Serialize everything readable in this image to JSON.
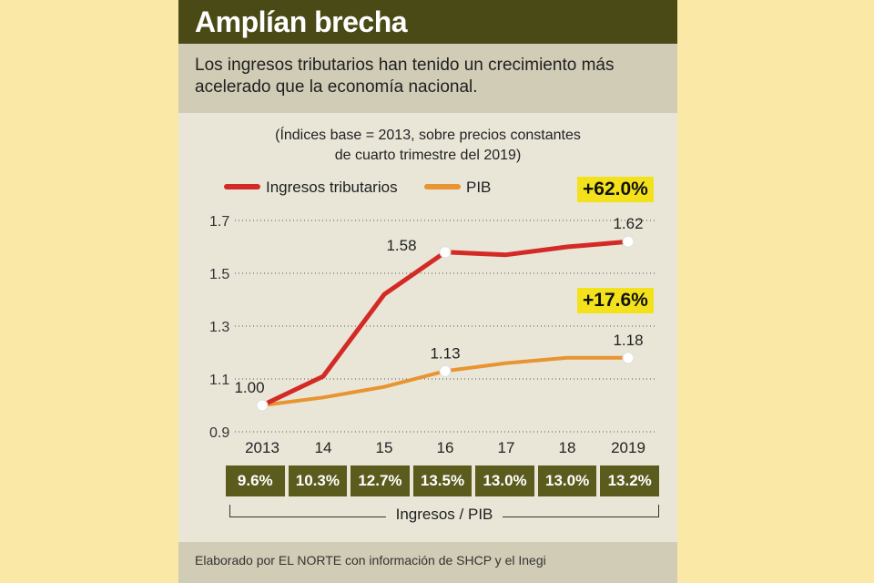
{
  "header": {
    "title": "Amplían brecha",
    "subtitle": "Los ingresos tributarios han tenido un crecimiento más acelerado que la economía nacional."
  },
  "note_line1": "(Índices base = 2013, sobre precios constantes",
  "note_line2": "de cuarto trimestre del 2019)",
  "colors": {
    "ingresos": "#d42a26",
    "pib": "#e89430",
    "badge": "#f3e21b",
    "ratio_cell": "#5b5b1e"
  },
  "badges": {
    "ingresos": "+62.0%",
    "pib": "+17.6%"
  },
  "chart_data": {
    "type": "line",
    "x": [
      "2013",
      "14",
      "15",
      "16",
      "17",
      "18",
      "2019"
    ],
    "series": [
      {
        "name": "Ingresos tributarios",
        "values": [
          1.0,
          1.11,
          1.42,
          1.58,
          1.57,
          1.6,
          1.62
        ]
      },
      {
        "name": "PIB",
        "values": [
          1.0,
          1.03,
          1.07,
          1.13,
          1.16,
          1.18,
          1.18
        ]
      }
    ],
    "yticks": [
      "0.9",
      "1.1",
      "1.3",
      "1.5",
      "1.7"
    ],
    "ylim": [
      0.9,
      1.7
    ],
    "grid": "horizontal dotted",
    "legend_position": "top",
    "point_labels": [
      {
        "series": 0,
        "index": 0,
        "text": "1.00"
      },
      {
        "series": 0,
        "index": 3,
        "text": "1.58"
      },
      {
        "series": 0,
        "index": 6,
        "text": "1.62"
      },
      {
        "series": 1,
        "index": 3,
        "text": "1.13"
      },
      {
        "series": 1,
        "index": 6,
        "text": "1.18"
      }
    ]
  },
  "ratio": {
    "label": "Ingresos / PIB",
    "values": [
      "9.6%",
      "10.3%",
      "12.7%",
      "13.5%",
      "13.0%",
      "13.0%",
      "13.2%"
    ]
  },
  "footer": "Elaborado por EL NORTE con información de SHCP y el Inegi"
}
